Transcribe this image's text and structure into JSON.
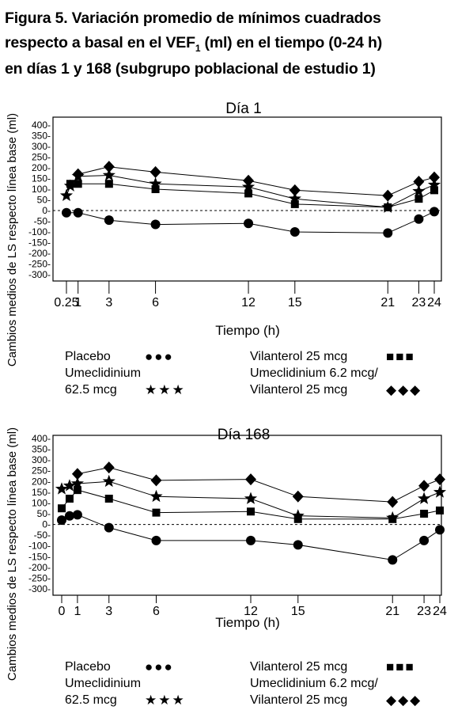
{
  "figure": {
    "title_lines": [
      "Figura 5. Variación promedio de mínimos cuadrados",
      "respecto a basal en el VEF",
      "1",
      " (ml) en el tiempo (0-24 h)",
      "en días 1 y 168 (subgrupo poblacional de estudio 1)"
    ]
  },
  "chart_data": [
    {
      "type": "line",
      "title": "Día 1",
      "xlabel": "Tiempo (h)",
      "ylabel": "Cambios medios de LS respecto línea base (ml)",
      "xlim": [
        0,
        24.5
      ],
      "ylim": [
        -300,
        400
      ],
      "x_ticks": [
        0.25,
        1,
        3,
        6,
        12,
        15,
        21,
        23,
        24
      ],
      "x_tick_labels": [
        "0.25",
        "1",
        "3",
        "6",
        "12",
        "15",
        "21",
        "23",
        "24"
      ],
      "y_ticks": [
        400,
        350,
        300,
        250,
        200,
        150,
        100,
        50,
        0,
        -50,
        -100,
        -150,
        -200,
        -250,
        -300
      ],
      "y_tick_labels": [
        "400-",
        "350-",
        "300-",
        "250-",
        "200-",
        "150-",
        "100-",
        "50-",
        "0-",
        "-50-",
        "-100-",
        "-150-",
        "-200-",
        "-250-",
        "-300-"
      ],
      "reference_line": 0,
      "series": [
        {
          "name": "Placebo",
          "marker": "circle",
          "x": [
            0.25,
            1,
            3,
            6,
            12,
            15,
            21,
            23,
            24
          ],
          "y": [
            -10,
            -10,
            -45,
            -65,
            -60,
            -100,
            -105,
            -40,
            -5
          ]
        },
        {
          "name": "Umeclidinium 62.5 mcg",
          "marker": "star",
          "x": [
            0.25,
            0.5,
            1,
            3,
            6,
            12,
            15,
            21,
            23,
            24
          ],
          "y": [
            70,
            115,
            160,
            165,
            125,
            110,
            55,
            15,
            90,
            120
          ]
        },
        {
          "name": "Vilanterol 25 mcg",
          "marker": "square",
          "x": [
            0.5,
            1,
            3,
            6,
            12,
            15,
            21,
            23,
            24
          ],
          "y": [
            125,
            125,
            125,
            100,
            80,
            30,
            15,
            55,
            95
          ]
        },
        {
          "name": "Umeclidinium 6.2 mcg/ Vilanterol 25 mcg",
          "marker": "diamond",
          "x": [
            1,
            3,
            6,
            12,
            15,
            21,
            23,
            24
          ],
          "y": [
            170,
            205,
            180,
            140,
            95,
            70,
            135,
            155
          ]
        }
      ]
    },
    {
      "type": "line",
      "title": "Día 168",
      "xlabel": "Tiempo (h)",
      "ylabel": "Cambios medios de LS respecto línea base (ml)",
      "xlim": [
        -0.2,
        24.5
      ],
      "ylim": [
        -300,
        400
      ],
      "x_ticks": [
        0,
        1,
        3,
        6,
        12,
        15,
        21,
        23,
        24
      ],
      "x_tick_labels": [
        "0",
        "1",
        "3",
        "6",
        "12",
        "15",
        "21",
        "23",
        "24"
      ],
      "y_ticks": [
        400,
        350,
        300,
        250,
        200,
        150,
        100,
        50,
        0,
        -50,
        -100,
        -150,
        -200,
        -250,
        -300
      ],
      "y_tick_labels": [
        "400-",
        "350-",
        "300-",
        "250-",
        "200-",
        "150-",
        "100-",
        "50-",
        "0-",
        "-50-",
        "-100-",
        "-150-",
        "-200-",
        "-250-",
        "-300-"
      ],
      "reference_line": 0,
      "series": [
        {
          "name": "Placebo",
          "marker": "circle",
          "x": [
            0,
            0.5,
            1,
            3,
            6,
            12,
            15,
            21,
            23,
            24
          ],
          "y": [
            20,
            40,
            45,
            -15,
            -75,
            -75,
            -95,
            -165,
            -75,
            -25
          ]
        },
        {
          "name": "Umeclidinium 62.5 mcg",
          "marker": "star",
          "x": [
            0,
            0.5,
            1,
            3,
            6,
            12,
            15,
            21,
            23,
            24
          ],
          "y": [
            165,
            180,
            190,
            200,
            130,
            120,
            40,
            30,
            120,
            150
          ]
        },
        {
          "name": "Vilanterol 25 mcg",
          "marker": "square",
          "x": [
            0,
            0.5,
            1,
            3,
            6,
            12,
            15,
            21,
            23,
            24
          ],
          "y": [
            75,
            120,
            160,
            120,
            55,
            60,
            25,
            25,
            50,
            65
          ]
        },
        {
          "name": "Umeclidinium 6.2 mcg/ Vilanterol 25 mcg",
          "marker": "diamond",
          "x": [
            1,
            3,
            6,
            12,
            15,
            21,
            23,
            24
          ],
          "y": [
            235,
            265,
            205,
            210,
            130,
            105,
            180,
            210
          ]
        }
      ]
    }
  ],
  "legends": [
    {
      "left": [
        {
          "lines": [
            "Placebo"
          ],
          "symbol": "●●●"
        },
        {
          "lines": [
            "Umeclidinium",
            "62.5 mcg"
          ],
          "symbol": "★★★"
        }
      ],
      "right": [
        {
          "lines": [
            "Vilanterol 25 mcg"
          ],
          "symbol": "■■■"
        },
        {
          "lines": [
            "Umeclidinium 6.2 mcg/",
            "Vilanterol 25 mcg"
          ],
          "symbol": "◆◆◆"
        }
      ]
    },
    {
      "left": [
        {
          "lines": [
            "Placebo"
          ],
          "symbol": "●●●"
        },
        {
          "lines": [
            "Umeclidinium",
            "62.5 mcg"
          ],
          "symbol": "★★★"
        }
      ],
      "right": [
        {
          "lines": [
            "Vilanterol 25 mcg"
          ],
          "symbol": "■■■"
        },
        {
          "lines": [
            "Umeclidinium 6.2 mcg/",
            "Vilanterol 25 mcg"
          ],
          "symbol": "◆◆◆"
        }
      ]
    }
  ]
}
